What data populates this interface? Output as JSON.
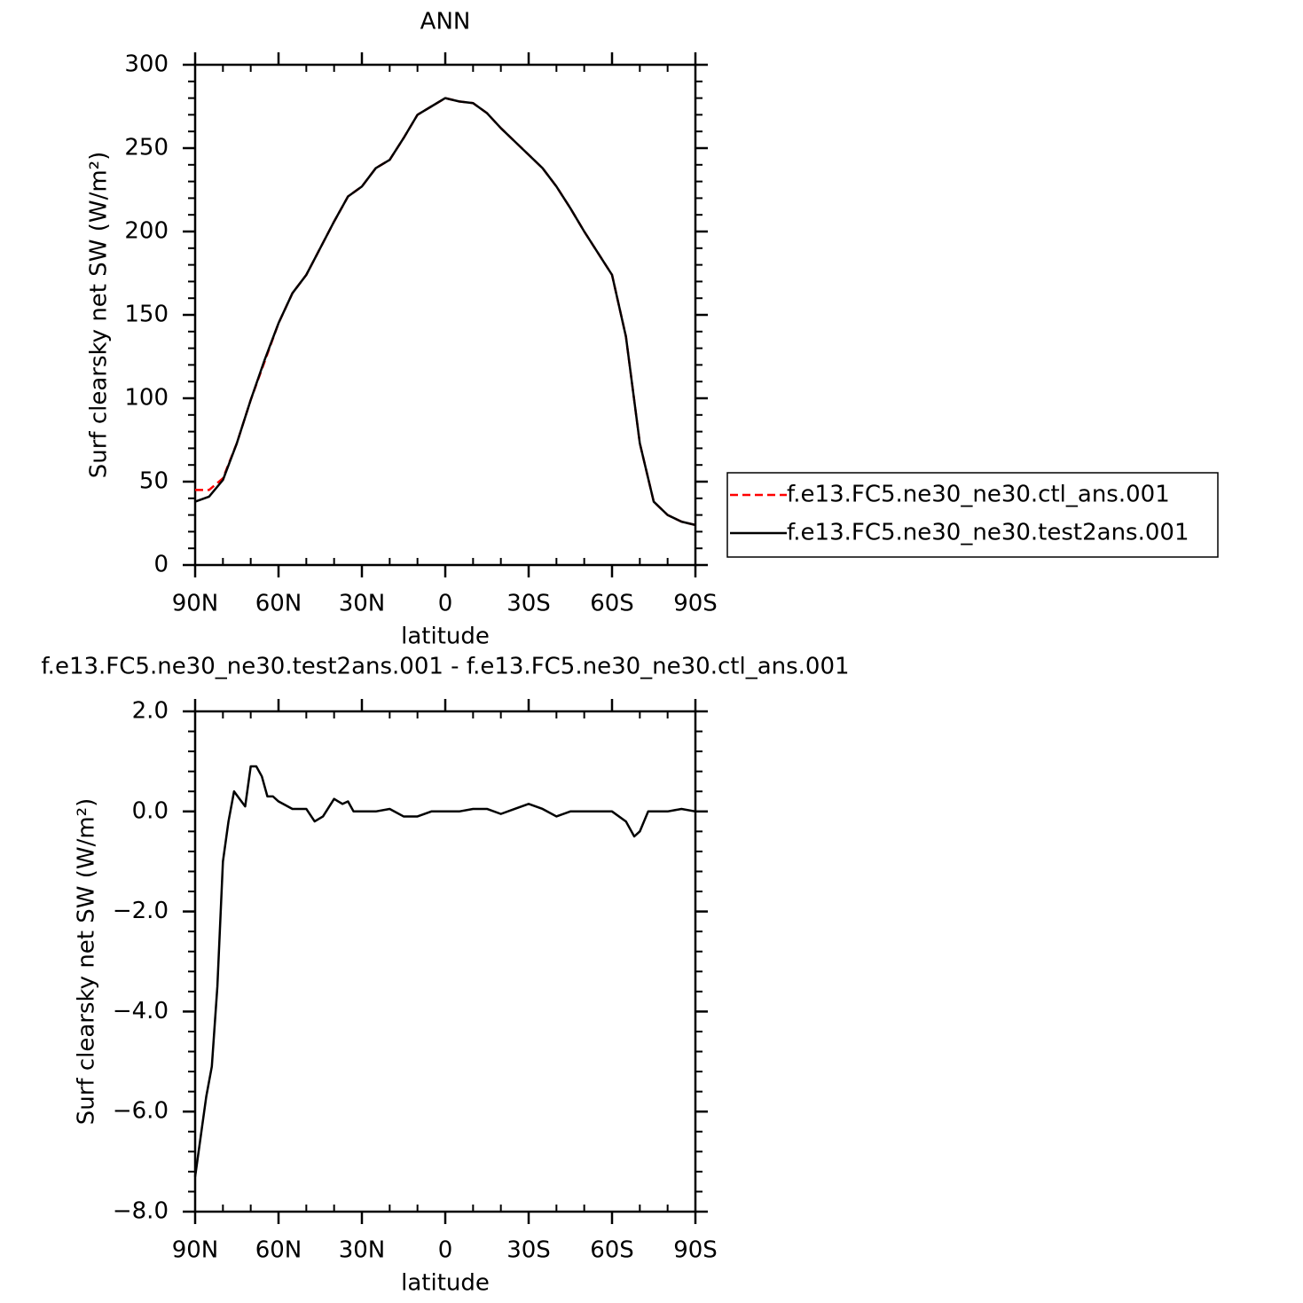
{
  "chart_data": [
    {
      "type": "line",
      "title": "ANN",
      "xlabel": "latitude",
      "ylabel": "Surf clearsky net SW (W/m²)",
      "x": [
        90,
        85,
        80,
        75,
        70,
        65,
        60,
        55,
        50,
        45,
        40,
        35,
        30,
        25,
        20,
        15,
        10,
        5,
        0,
        -5,
        -10,
        -15,
        -20,
        -25,
        -30,
        -35,
        -40,
        -45,
        -50,
        -55,
        -60,
        -65,
        -70,
        -75,
        -80,
        -85,
        -90
      ],
      "series": [
        {
          "name": "f.e13.FC5.ne30_ne30.ctl_ans.001",
          "color": "#ff0000",
          "dashed": true,
          "values": [
            45,
            45,
            52,
            73,
            99,
            122,
            145,
            163,
            174,
            190,
            206,
            221,
            227,
            238,
            243,
            256,
            270,
            275,
            280,
            278,
            277,
            271,
            262,
            254,
            246,
            238,
            227,
            214,
            200,
            187,
            174,
            137,
            73,
            38,
            30,
            26,
            24
          ]
        },
        {
          "name": "f.e13.FC5.ne30_ne30.test2ans.001",
          "color": "#000000",
          "dashed": false,
          "values": [
            38,
            41,
            51,
            73,
            99,
            123,
            145,
            163,
            174,
            190,
            206,
            221,
            227,
            238,
            243,
            256,
            270,
            275,
            280,
            278,
            277,
            271,
            262,
            254,
            246,
            238,
            227,
            214,
            200,
            187,
            174,
            137,
            73,
            38,
            30,
            26,
            24
          ]
        }
      ],
      "xlim": [
        90,
        -90
      ],
      "xticks": [
        {
          "value": 90,
          "label": "90N"
        },
        {
          "value": 60,
          "label": "60N"
        },
        {
          "value": 30,
          "label": "30N"
        },
        0,
        {
          "value": -30,
          "label": "30S"
        },
        {
          "value": -60,
          "label": "60S"
        },
        {
          "value": -90,
          "label": "90S"
        }
      ],
      "ylim": [
        0,
        300
      ],
      "yticks": [
        0,
        50,
        100,
        150,
        200,
        250,
        300
      ],
      "legend": "right"
    },
    {
      "type": "line",
      "title": "f.e13.FC5.ne30_ne30.test2ans.001 - f.e13.FC5.ne30_ne30.ctl_ans.001",
      "xlabel": "latitude",
      "ylabel": "Surf clearsky net SW (W/m²)",
      "x": [
        90,
        88,
        86,
        84,
        82,
        80,
        78,
        76,
        74,
        72,
        70,
        68,
        66,
        64,
        62,
        60,
        55,
        50,
        47,
        44,
        40,
        37,
        35,
        33,
        30,
        25,
        20,
        15,
        10,
        5,
        0,
        -5,
        -10,
        -15,
        -20,
        -25,
        -30,
        -35,
        -40,
        -45,
        -50,
        -55,
        -60,
        -65,
        -68,
        -70,
        -73,
        -76,
        -80,
        -85,
        -90
      ],
      "series": [
        {
          "color": "#000000",
          "dashed": false,
          "values": [
            -7.3,
            -6.5,
            -5.7,
            -5.1,
            -3.5,
            -1.0,
            -0.2,
            0.4,
            0.25,
            0.1,
            0.9,
            0.9,
            0.7,
            0.3,
            0.3,
            0.2,
            0.05,
            0.05,
            -0.2,
            -0.1,
            0.25,
            0.15,
            0.2,
            0.0,
            0.0,
            0.0,
            0.05,
            -0.1,
            -0.1,
            0.0,
            0.0,
            0.0,
            0.05,
            0.05,
            -0.05,
            0.05,
            0.15,
            0.05,
            -0.1,
            0.0,
            0.0,
            0.0,
            0.0,
            -0.2,
            -0.5,
            -0.4,
            0.0,
            0.0,
            0.0,
            0.05,
            0.0
          ]
        }
      ],
      "xlim": [
        90,
        -90
      ],
      "xticks": [
        {
          "value": 90,
          "label": "90N"
        },
        {
          "value": 60,
          "label": "60N"
        },
        {
          "value": 30,
          "label": "30N"
        },
        0,
        {
          "value": -30,
          "label": "30S"
        },
        {
          "value": -60,
          "label": "60S"
        },
        {
          "value": -90,
          "label": "90S"
        }
      ],
      "ylim": [
        -8,
        2
      ],
      "yticks": [
        {
          "value": -8,
          "label": "−8.0"
        },
        {
          "value": -6,
          "label": "−6.0"
        },
        {
          "value": -4,
          "label": "−4.0"
        },
        {
          "value": -2,
          "label": "−2.0"
        },
        {
          "value": 0,
          "label": "0.0"
        },
        {
          "value": 2,
          "label": "2.0"
        }
      ]
    }
  ]
}
